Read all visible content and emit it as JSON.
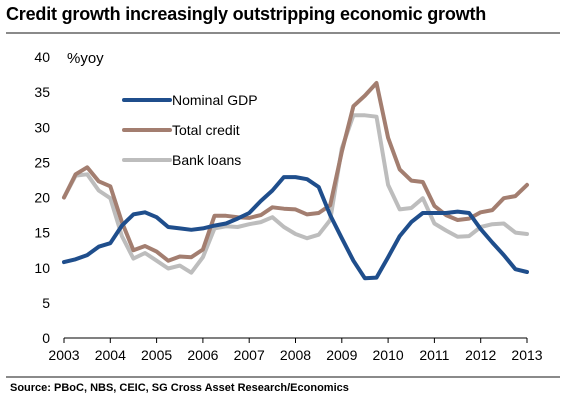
{
  "title": "Credit growth increasingly outstripping economic growth",
  "source": "Source: PBoC, NBS, CEIC, SG Cross Asset Research/Economics",
  "chart_data": {
    "type": "line",
    "unit_label": "%yoy",
    "ylim": [
      0,
      40
    ],
    "y_ticks": [
      "0",
      "5",
      "10",
      "15",
      "20",
      "25",
      "30",
      "35",
      "40"
    ],
    "x_ticks": [
      "2003",
      "2004",
      "2005",
      "2006",
      "2007",
      "2008",
      "2009",
      "2010",
      "2011",
      "2012",
      "2013"
    ],
    "xlim": [
      2003,
      2013
    ],
    "grid": false,
    "legend_position": "upper-left",
    "series": [
      {
        "name": "Nominal GDP",
        "color": "#1f4e8c",
        "x": [
          2003.0,
          2003.25,
          2003.5,
          2003.75,
          2004.0,
          2004.25,
          2004.5,
          2004.75,
          2005.0,
          2005.25,
          2005.5,
          2005.75,
          2006.0,
          2006.25,
          2006.5,
          2006.75,
          2007.0,
          2007.25,
          2007.5,
          2007.75,
          2008.0,
          2008.25,
          2008.5,
          2008.75,
          2009.0,
          2009.25,
          2009.5,
          2009.75,
          2010.0,
          2010.25,
          2010.5,
          2010.75,
          2011.0,
          2011.25,
          2011.5,
          2011.75,
          2012.0,
          2012.25,
          2012.5,
          2012.75,
          2013.0
        ],
        "values": [
          10.8,
          11.2,
          11.8,
          13.0,
          13.5,
          16.0,
          17.6,
          17.9,
          17.2,
          15.8,
          15.6,
          15.4,
          15.6,
          16.0,
          16.3,
          17.0,
          17.8,
          19.5,
          21.0,
          22.9,
          22.9,
          22.6,
          21.5,
          17.5,
          14.2,
          11.0,
          8.5,
          8.6,
          11.5,
          14.5,
          16.5,
          17.8,
          17.8,
          17.8,
          18.0,
          17.8,
          15.5,
          13.6,
          11.8,
          9.8,
          9.4
        ]
      },
      {
        "name": "Total credit",
        "color": "#a37e70",
        "x": [
          2003.0,
          2003.25,
          2003.5,
          2003.75,
          2004.0,
          2004.25,
          2004.5,
          2004.75,
          2005.0,
          2005.25,
          2005.5,
          2005.75,
          2006.0,
          2006.25,
          2006.5,
          2006.75,
          2007.0,
          2007.25,
          2007.5,
          2007.75,
          2008.0,
          2008.25,
          2008.5,
          2008.75,
          2009.0,
          2009.25,
          2009.5,
          2009.75,
          2010.0,
          2010.25,
          2010.5,
          2010.75,
          2011.0,
          2011.25,
          2011.5,
          2011.75,
          2012.0,
          2012.25,
          2012.5,
          2012.75,
          2013.0
        ],
        "values": [
          20.0,
          23.3,
          24.3,
          22.3,
          21.6,
          16.5,
          12.5,
          13.1,
          12.3,
          11.0,
          11.6,
          11.5,
          12.6,
          17.4,
          17.4,
          17.2,
          17.1,
          17.5,
          18.6,
          18.4,
          18.3,
          17.6,
          17.8,
          18.9,
          26.5,
          33.0,
          34.5,
          36.3,
          28.5,
          24.0,
          22.4,
          22.2,
          18.8,
          17.5,
          16.8,
          17.0,
          17.9,
          18.2,
          19.9,
          20.2,
          21.8
        ]
      },
      {
        "name": "Bank loans",
        "color": "#bdbdbd",
        "x": [
          2003.0,
          2003.25,
          2003.5,
          2003.75,
          2004.0,
          2004.25,
          2004.5,
          2004.75,
          2005.0,
          2005.25,
          2005.5,
          2005.75,
          2006.0,
          2006.25,
          2006.5,
          2006.75,
          2007.0,
          2007.25,
          2007.5,
          2007.75,
          2008.0,
          2008.25,
          2008.5,
          2008.75,
          2009.0,
          2009.25,
          2009.5,
          2009.75,
          2010.0,
          2010.25,
          2010.5,
          2010.75,
          2011.0,
          2011.25,
          2011.5,
          2011.75,
          2012.0,
          2012.25,
          2012.5,
          2012.75,
          2013.0
        ],
        "values": [
          20.0,
          23.1,
          23.3,
          21.0,
          19.9,
          14.5,
          11.3,
          12.1,
          11.0,
          9.9,
          10.3,
          9.3,
          11.5,
          15.6,
          15.9,
          15.8,
          16.2,
          16.5,
          17.2,
          15.8,
          14.8,
          14.2,
          14.7,
          16.8,
          27.0,
          31.7,
          31.7,
          31.5,
          21.8,
          18.3,
          18.5,
          19.9,
          16.3,
          15.3,
          14.4,
          14.5,
          15.8,
          16.2,
          16.3,
          15.0,
          14.8
        ]
      }
    ]
  }
}
